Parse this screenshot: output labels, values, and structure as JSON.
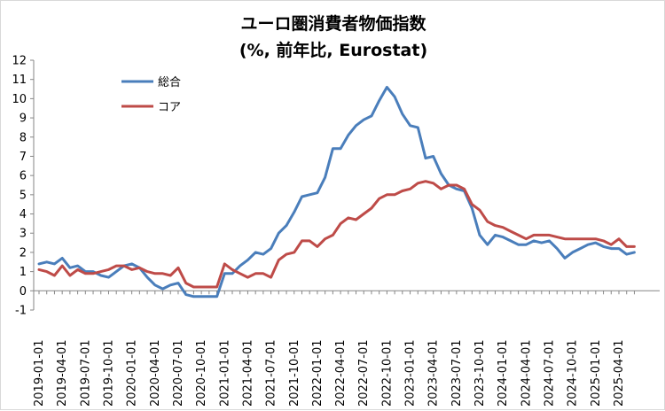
{
  "chart_data": {
    "type": "line",
    "title": "ユーロ圏消費者物価指数",
    "subtitle": "(%, 前年比, Eurostat)",
    "xlabel": "",
    "ylabel": "",
    "ylim": [
      -1,
      12
    ],
    "yticks": [
      "-1",
      "0",
      "1",
      "2",
      "3",
      "4",
      "5",
      "6",
      "7",
      "8",
      "9",
      "10",
      "11",
      "12"
    ],
    "xtick_labels": [
      "2019-01-01",
      "2019-04-01",
      "2019-07-01",
      "2019-10-01",
      "2020-01-01",
      "2020-04-01",
      "2020-07-01",
      "2020-10-01",
      "2021-01-01",
      "2021-04-01",
      "2021-07-01",
      "2021-10-01",
      "2022-01-01",
      "2022-04-01",
      "2022-07-01",
      "2022-10-01",
      "2023-01-01",
      "2023-04-01",
      "2023-07-01",
      "2023-10-01",
      "2024-01-01",
      "2024-04-01",
      "2024-07-01",
      "2024-10-01",
      "2025-01-01",
      "2025-04-01"
    ],
    "x": [
      "2019-01",
      "2019-02",
      "2019-03",
      "2019-04",
      "2019-05",
      "2019-06",
      "2019-07",
      "2019-08",
      "2019-09",
      "2019-10",
      "2019-11",
      "2019-12",
      "2020-01",
      "2020-02",
      "2020-03",
      "2020-04",
      "2020-05",
      "2020-06",
      "2020-07",
      "2020-08",
      "2020-09",
      "2020-10",
      "2020-11",
      "2020-12",
      "2021-01",
      "2021-02",
      "2021-03",
      "2021-04",
      "2021-05",
      "2021-06",
      "2021-07",
      "2021-08",
      "2021-09",
      "2021-10",
      "2021-11",
      "2021-12",
      "2022-01",
      "2022-02",
      "2022-03",
      "2022-04",
      "2022-05",
      "2022-06",
      "2022-07",
      "2022-08",
      "2022-09",
      "2022-10",
      "2022-11",
      "2022-12",
      "2023-01",
      "2023-02",
      "2023-03",
      "2023-04",
      "2023-05",
      "2023-06",
      "2023-07",
      "2023-08",
      "2023-09",
      "2023-10",
      "2023-11",
      "2023-12",
      "2024-01",
      "2024-02",
      "2024-03",
      "2024-04",
      "2024-05",
      "2024-06",
      "2024-07",
      "2024-08",
      "2024-09",
      "2024-10",
      "2024-11",
      "2024-12",
      "2025-01",
      "2025-02",
      "2025-03",
      "2025-04",
      "2025-05",
      "2025-06"
    ],
    "series": [
      {
        "name": "総合",
        "color": "#4a7ebb",
        "values": [
          1.4,
          1.5,
          1.4,
          1.7,
          1.2,
          1.3,
          1.0,
          1.0,
          0.8,
          0.7,
          1.0,
          1.3,
          1.4,
          1.2,
          0.7,
          0.3,
          0.1,
          0.3,
          0.4,
          -0.2,
          -0.3,
          -0.3,
          -0.3,
          -0.3,
          0.9,
          0.9,
          1.3,
          1.6,
          2.0,
          1.9,
          2.2,
          3.0,
          3.4,
          4.1,
          4.9,
          5.0,
          5.1,
          5.9,
          7.4,
          7.4,
          8.1,
          8.6,
          8.9,
          9.1,
          9.9,
          10.6,
          10.1,
          9.2,
          8.6,
          8.5,
          6.9,
          7.0,
          6.1,
          5.5,
          5.3,
          5.2,
          4.3,
          2.9,
          2.4,
          2.9,
          2.8,
          2.6,
          2.4,
          2.4,
          2.6,
          2.5,
          2.6,
          2.2,
          1.7,
          2.0,
          2.2,
          2.4,
          2.5,
          2.3,
          2.2,
          2.2,
          1.9,
          2.0
        ]
      },
      {
        "name": "コア",
        "color": "#be4b48",
        "values": [
          1.1,
          1.0,
          0.8,
          1.3,
          0.8,
          1.1,
          0.9,
          0.9,
          1.0,
          1.1,
          1.3,
          1.3,
          1.1,
          1.2,
          1.0,
          0.9,
          0.9,
          0.8,
          1.2,
          0.4,
          0.2,
          0.2,
          0.2,
          0.2,
          1.4,
          1.1,
          0.9,
          0.7,
          0.9,
          0.9,
          0.7,
          1.6,
          1.9,
          2.0,
          2.6,
          2.6,
          2.3,
          2.7,
          2.9,
          3.5,
          3.8,
          3.7,
          4.0,
          4.3,
          4.8,
          5.0,
          5.0,
          5.2,
          5.3,
          5.6,
          5.7,
          5.6,
          5.3,
          5.5,
          5.5,
          5.3,
          4.5,
          4.2,
          3.6,
          3.4,
          3.3,
          3.1,
          2.9,
          2.7,
          2.9,
          2.9,
          2.9,
          2.8,
          2.7,
          2.7,
          2.7,
          2.7,
          2.7,
          2.6,
          2.4,
          2.7,
          2.3,
          2.3
        ]
      }
    ],
    "legend": "top-left",
    "grid": false
  }
}
